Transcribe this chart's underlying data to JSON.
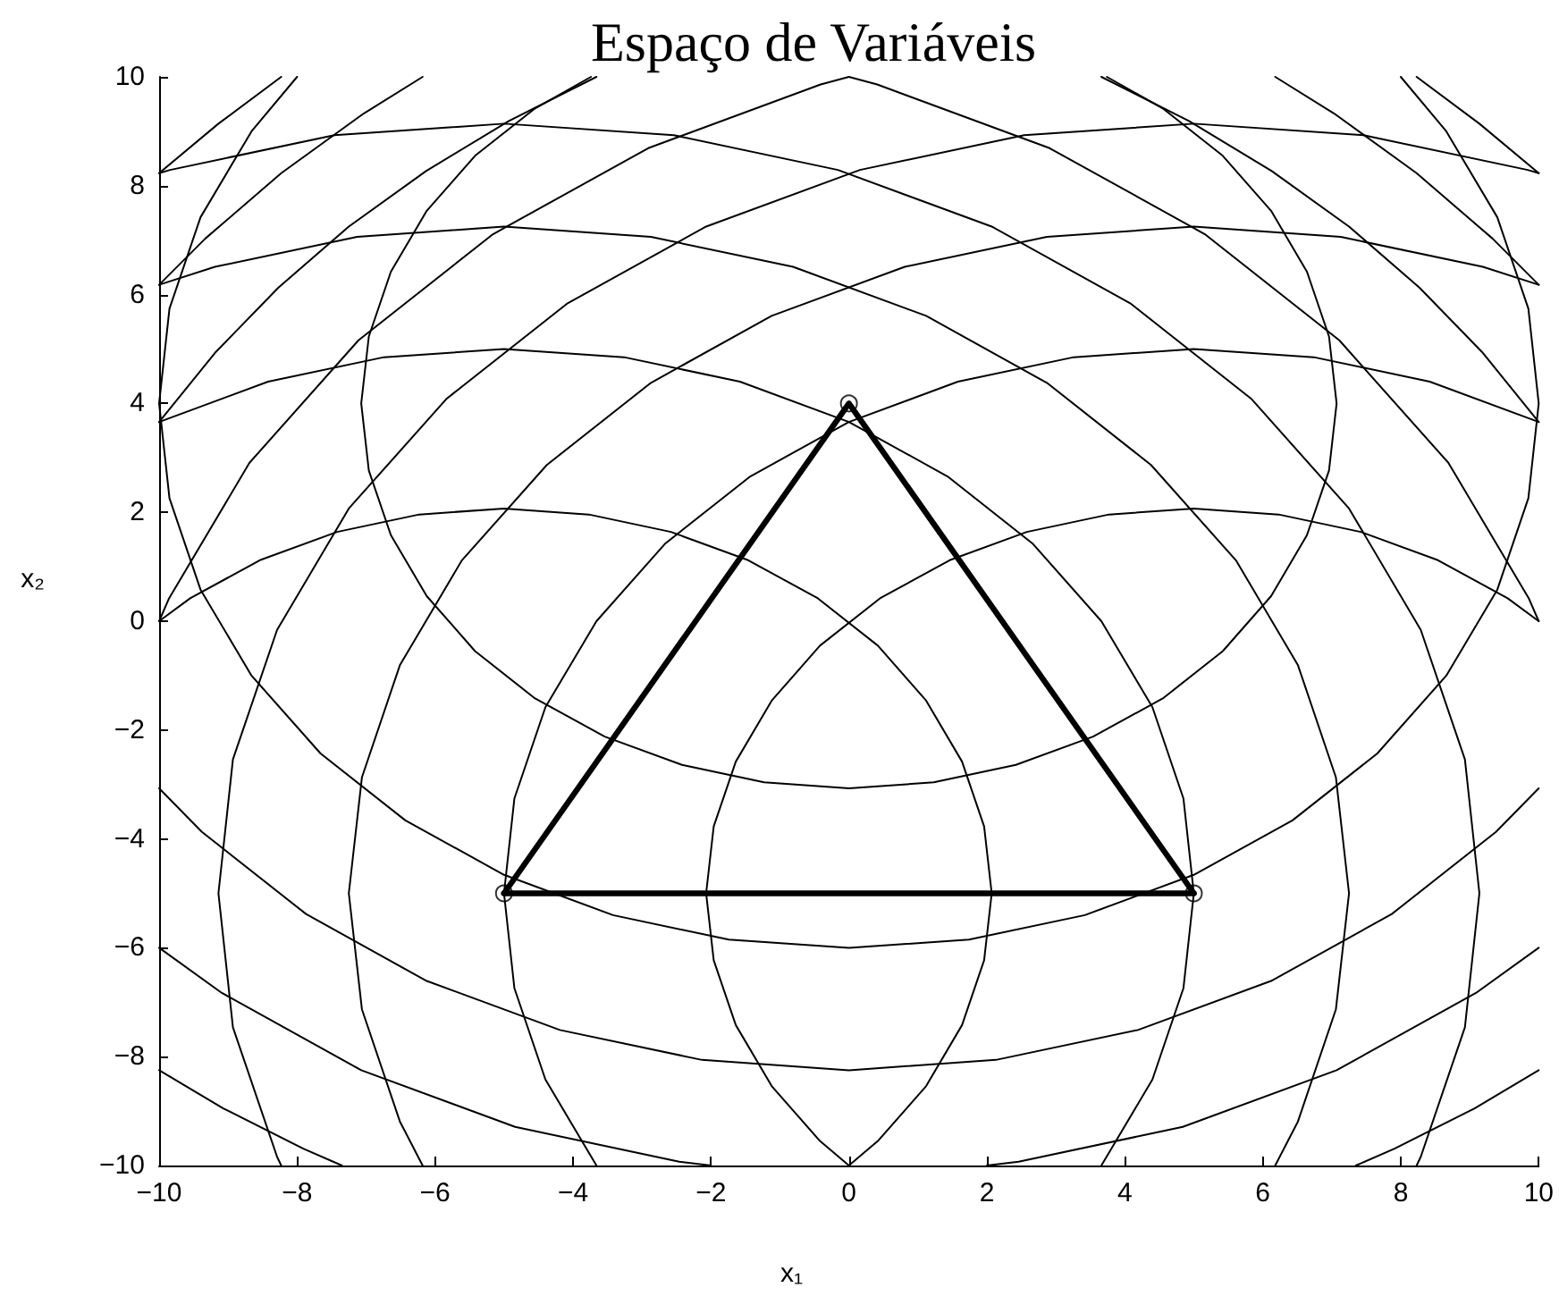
{
  "chart_data": {
    "type": "line",
    "title": "Espaço de Variáveis",
    "xlabel": "x₁",
    "ylabel": "x₂",
    "xlim": [
      -10,
      10
    ],
    "ylim": [
      -10,
      10
    ],
    "xticks": [
      -10,
      -8,
      -6,
      -4,
      -2,
      0,
      2,
      4,
      6,
      8,
      10
    ],
    "yticks": [
      -10,
      -8,
      -6,
      -4,
      -2,
      0,
      2,
      4,
      6,
      8,
      10
    ],
    "marker": "none",
    "line_style": "solid",
    "series": [
      {
        "color": "#000000",
        "x": [
          -3.74,
          -4.55,
          -5.42,
          -6.12,
          -6.64,
          -6.96,
          -7.07,
          -6.96,
          -6.64,
          -6.12,
          -5.42,
          -4.55,
          -3.54,
          -2.42,
          -1.23,
          0,
          1.23,
          2.42,
          3.54,
          4.55,
          5.42,
          6.12,
          6.64,
          6.96,
          7.07,
          6.96,
          6.64,
          6.12,
          5.42,
          4.55,
          3.74
        ],
        "values": [
          10,
          9.42,
          8.55,
          7.54,
          6.42,
          5.23,
          4,
          2.77,
          1.58,
          0.46,
          -0.55,
          -1.42,
          -2.12,
          -2.64,
          -2.96,
          -3.07,
          -2.96,
          -2.64,
          -2.12,
          -1.42,
          -0.55,
          0.46,
          1.58,
          2.77,
          4,
          5.23,
          6.42,
          7.54,
          8.55,
          9.42,
          10
        ]
      },
      {
        "color": "#000000",
        "x": [
          -8,
          -8.66,
          -9.4,
          -9.85,
          -10,
          -9.85,
          -9.4,
          -8.66,
          -7.66,
          -6.43,
          -5,
          -3.42,
          -1.74,
          0,
          1.74,
          3.42,
          5,
          6.43,
          7.66,
          8.66,
          9.4,
          9.85,
          10,
          9.85,
          9.4,
          8.66,
          8
        ],
        "values": [
          10,
          9,
          7.42,
          5.74,
          4,
          2.26,
          0.58,
          -1,
          -2.43,
          -3.66,
          -4.66,
          -5.4,
          -5.85,
          -6,
          -5.85,
          -5.4,
          -4.66,
          -3.66,
          -2.43,
          -1,
          0.58,
          2.26,
          4,
          5.74,
          7.42,
          9,
          10
        ]
      },
      {
        "color": "#000000",
        "x": [
          -10,
          -9.38,
          -7.87,
          -6.12,
          -4.19,
          -2.13,
          0,
          2.13,
          4.19,
          6.12,
          7.87,
          9.38,
          10
        ],
        "values": [
          -3.07,
          -3.87,
          -5.38,
          -6.61,
          -7.51,
          -8.06,
          -8.25,
          -8.06,
          -7.51,
          -6.61,
          -5.38,
          -3.87,
          -3.07
        ]
      },
      {
        "color": "#000000",
        "x": [
          -10,
          -9.09,
          -7.07,
          -4.84,
          -2.46,
          -2
        ],
        "values": [
          -6,
          -6.83,
          -8.25,
          -9.29,
          -9.93,
          -10
        ]
      },
      {
        "color": "#000000",
        "x": [
          2,
          2.46,
          4.84,
          7.07,
          9.09,
          10
        ],
        "values": [
          -10,
          -9.93,
          -9.29,
          -8.25,
          -6.83,
          -6
        ]
      },
      {
        "color": "#000000",
        "x": [
          -10,
          -9.07,
          -7.91,
          -7.35
        ],
        "values": [
          -8.25,
          -8.95,
          -9.69,
          -10
        ]
      },
      {
        "color": "#000000",
        "x": [
          7.35,
          7.91,
          9.07,
          10
        ],
        "values": [
          -10,
          -9.69,
          -8.95,
          -8.25
        ]
      },
      {
        "color": "#000000",
        "x": [
          0,
          0.42,
          1.12,
          1.64,
          1.96,
          2.07,
          1.96,
          1.64,
          1.12,
          0.42,
          -0.45,
          -1.46,
          -2.58,
          -3.77,
          -5,
          -6.23,
          -7.42,
          -8.54,
          -9.55,
          -10
        ],
        "values": [
          -10,
          -9.55,
          -8.54,
          -7.42,
          -6.23,
          -5,
          -3.77,
          -2.58,
          -1.46,
          -0.45,
          0.42,
          1.12,
          1.64,
          1.96,
          2.07,
          1.96,
          1.64,
          1.12,
          0.42,
          0
        ]
      },
      {
        "color": "#000000",
        "x": [
          0,
          -0.42,
          -1.12,
          -1.64,
          -1.96,
          -2.07,
          -1.96,
          -1.64,
          -1.12,
          -0.42,
          0.45,
          1.46,
          2.58,
          3.77,
          5,
          6.23,
          7.42,
          8.54,
          9.55,
          10
        ],
        "values": [
          -10,
          -9.55,
          -8.54,
          -7.42,
          -6.23,
          -5,
          -3.77,
          -2.58,
          -1.46,
          -0.45,
          0.42,
          1.12,
          1.64,
          1.96,
          2.07,
          1.96,
          1.64,
          1.12,
          0.42,
          0
        ]
      },
      {
        "color": "#000000",
        "x": [
          3.66,
          4.4,
          4.85,
          5,
          4.85,
          4.4,
          3.66,
          2.66,
          1.43,
          0,
          -1.58,
          -3.26,
          -5,
          -6.74,
          -8.42,
          -10
        ],
        "values": [
          -10,
          -8.42,
          -6.74,
          -5,
          -3.26,
          -1.58,
          0,
          1.43,
          2.66,
          3.66,
          4.4,
          4.85,
          5,
          4.85,
          4.4,
          3.66
        ]
      },
      {
        "color": "#000000",
        "x": [
          -3.66,
          -4.4,
          -4.85,
          -5,
          -4.85,
          -4.4,
          -3.66,
          -2.66,
          -1.43,
          0,
          1.58,
          3.26,
          5,
          6.74,
          8.42,
          10
        ],
        "values": [
          -10,
          -8.42,
          -6.74,
          -5,
          -3.26,
          -1.58,
          0,
          1.43,
          2.66,
          3.66,
          4.4,
          4.85,
          5,
          4.85,
          4.4,
          3.66
        ]
      },
      {
        "color": "#000000",
        "x": [
          6.18,
          6.51,
          7.06,
          7.25,
          7.06,
          6.51,
          5.61,
          4.38,
          2.87,
          1.12,
          -0.81,
          -2.87,
          -5,
          -7.13,
          -9.19,
          -10
        ],
        "values": [
          -10,
          -9.19,
          -7.13,
          -5,
          -2.87,
          -0.81,
          1.12,
          2.87,
          4.38,
          5.61,
          6.51,
          7.06,
          7.25,
          7.06,
          6.51,
          6.18
        ]
      },
      {
        "color": "#000000",
        "x": [
          -6.18,
          -6.51,
          -7.06,
          -7.25,
          -7.06,
          -6.51,
          -5.61,
          -4.38,
          -2.87,
          -1.12,
          0.81,
          2.87,
          5,
          7.13,
          9.19,
          10
        ],
        "values": [
          -10,
          -9.19,
          -7.13,
          -5,
          -2.87,
          -0.81,
          1.12,
          2.87,
          4.38,
          5.61,
          6.51,
          7.06,
          7.25,
          7.06,
          6.51,
          6.18
        ]
      },
      {
        "color": "#000000",
        "x": [
          8.23,
          8.29,
          8.93,
          9.14,
          8.93,
          8.29,
          7.25,
          5.83,
          4.09,
          2.07,
          -0.16,
          -2.54,
          -5,
          -7.46,
          -9.84,
          -10
        ],
        "values": [
          -10,
          -9.84,
          -7.46,
          -5,
          -2.54,
          -0.16,
          2.07,
          4.09,
          5.83,
          7.25,
          8.29,
          8.93,
          9.14,
          8.93,
          8.29,
          8.23
        ]
      },
      {
        "color": "#000000",
        "x": [
          -8.23,
          -8.29,
          -8.93,
          -9.14,
          -8.93,
          -8.29,
          -7.25,
          -5.83,
          -4.09,
          -2.07,
          0.16,
          2.54,
          5,
          7.46,
          9.84,
          10
        ],
        "values": [
          -10,
          -9.84,
          -7.46,
          -5,
          -2.54,
          -0.16,
          2.07,
          4.09,
          5.83,
          7.25,
          8.29,
          8.93,
          9.14,
          8.93,
          8.29,
          8.23
        ]
      },
      {
        "color": "#000000",
        "x": [
          10,
          9.86,
          8.69,
          7.11,
          5.16,
          2.91,
          0.41,
          0
        ],
        "values": [
          0,
          0.41,
          2.91,
          5.16,
          7.11,
          8.69,
          9.86,
          10
        ]
      },
      {
        "color": "#000000",
        "x": [
          -10,
          -9.86,
          -8.69,
          -7.11,
          -5.16,
          -2.91,
          -0.41,
          0
        ],
        "values": [
          0,
          0.41,
          2.91,
          5.16,
          7.11,
          8.69,
          9.86,
          10
        ]
      },
      {
        "color": "#000000",
        "x": [
          10,
          9.19,
          8.27,
          7.25,
          6.13,
          4.93,
          3.66
        ],
        "values": [
          3.66,
          4.93,
          6.13,
          7.25,
          8.27,
          9.19,
          10
        ]
      },
      {
        "color": "#000000",
        "x": [
          -10,
          -9.19,
          -8.27,
          -7.25,
          -6.13,
          -4.93,
          -3.66
        ],
        "values": [
          3.66,
          4.93,
          6.13,
          7.25,
          8.27,
          9.19,
          10
        ]
      },
      {
        "color": "#000000",
        "x": [
          10,
          9.33,
          8.23,
          7.03,
          6.18
        ],
        "values": [
          6.18,
          7.03,
          8.23,
          9.33,
          10
        ]
      },
      {
        "color": "#000000",
        "x": [
          -10,
          -9.33,
          -8.23,
          -7.03,
          -6.18
        ],
        "values": [
          6.18,
          7.03,
          8.23,
          9.33,
          10
        ]
      },
      {
        "color": "#000000",
        "x": [
          10,
          9.14,
          8.23
        ],
        "values": [
          8.23,
          9.14,
          10
        ]
      },
      {
        "color": "#000000",
        "x": [
          -10,
          -9.14,
          -8.23
        ],
        "values": [
          8.23,
          9.14,
          10
        ]
      },
      {
        "color": "#000000",
        "x": [
          5,
          0,
          -5
        ],
        "values": [
          -5,
          4,
          -5
        ]
      },
      {
        "color": "#000000",
        "x": [
          -5,
          5
        ],
        "values": [
          -5,
          -5
        ]
      },
      {
        "type": "scatter",
        "color": "#000000",
        "marker": "circle",
        "x": [
          0,
          -5,
          5
        ],
        "values": [
          4,
          -5,
          -5
        ]
      }
    ]
  }
}
